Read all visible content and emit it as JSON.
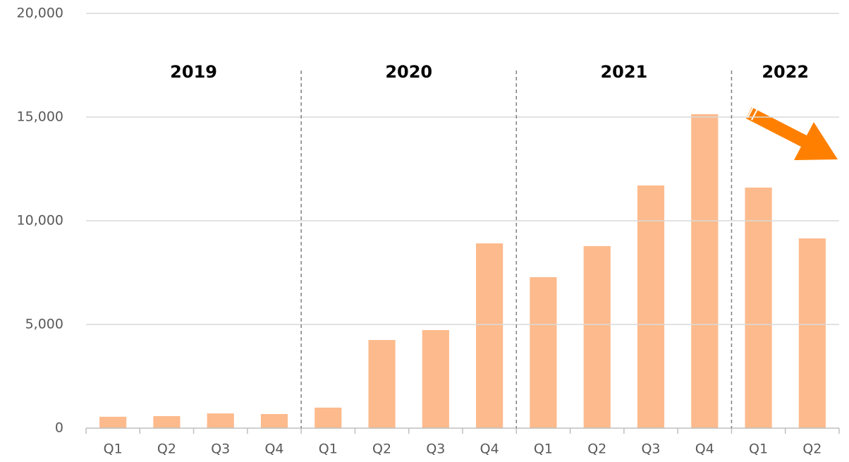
{
  "chart_data": {
    "type": "bar",
    "categories": [
      "Q1",
      "Q2",
      "Q3",
      "Q4",
      "Q1",
      "Q2",
      "Q3",
      "Q4",
      "Q1",
      "Q2",
      "Q3",
      "Q4",
      "Q1",
      "Q2"
    ],
    "groups": [
      {
        "name": "2019",
        "count": 4
      },
      {
        "name": "2020",
        "count": 4
      },
      {
        "name": "2021",
        "count": 4
      },
      {
        "name": "2022",
        "count": 2
      }
    ],
    "values": [
      550,
      580,
      710,
      680,
      990,
      4250,
      4730,
      8910,
      7280,
      8780,
      11700,
      15140,
      11600,
      9150
    ],
    "color": "#fdba8c",
    "ylim": [
      0,
      20000
    ],
    "yticks": [
      0,
      {
        "value": 5000,
        "label": "5,000"
      },
      {
        "value": 10000,
        "label": "10,000"
      },
      {
        "value": 15000,
        "label": "15,000"
      },
      {
        "value": 20000,
        "label": "20,000"
      }
    ],
    "grid": true
  }
}
